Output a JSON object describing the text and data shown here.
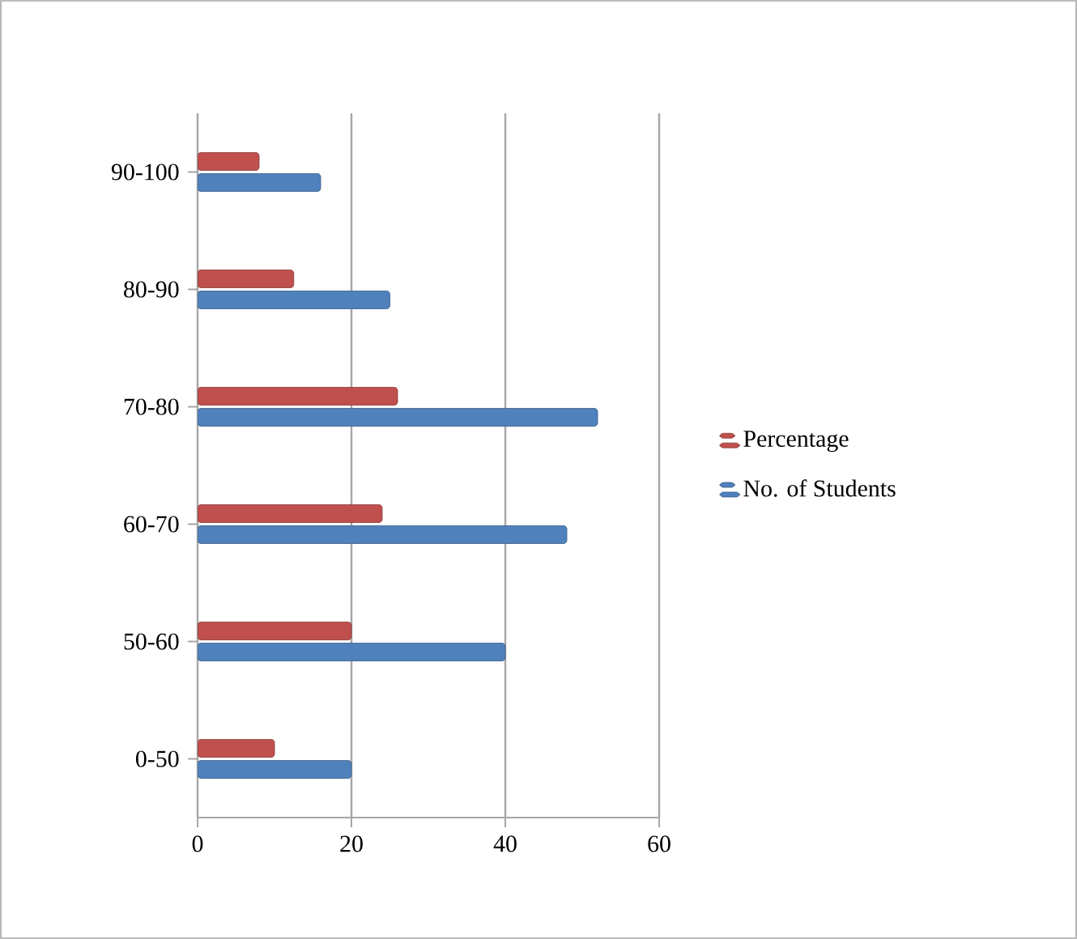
{
  "chart_data": {
    "type": "bar",
    "orientation": "horizontal",
    "categories": [
      "90-100",
      "80-90",
      "70-80",
      "60-70",
      "50-60",
      "0-50"
    ],
    "series": [
      {
        "name": "No. of Students",
        "color": "#4f81bd",
        "values": [
          16,
          25,
          52,
          48,
          40,
          20
        ]
      },
      {
        "name": "Percentage",
        "color": "#c0504d",
        "values": [
          8,
          12.5,
          26,
          24,
          20,
          10
        ]
      }
    ],
    "xlim": [
      0,
      60
    ],
    "xticks": [
      0,
      20,
      40,
      60
    ],
    "grid": "x",
    "legend": "right"
  }
}
